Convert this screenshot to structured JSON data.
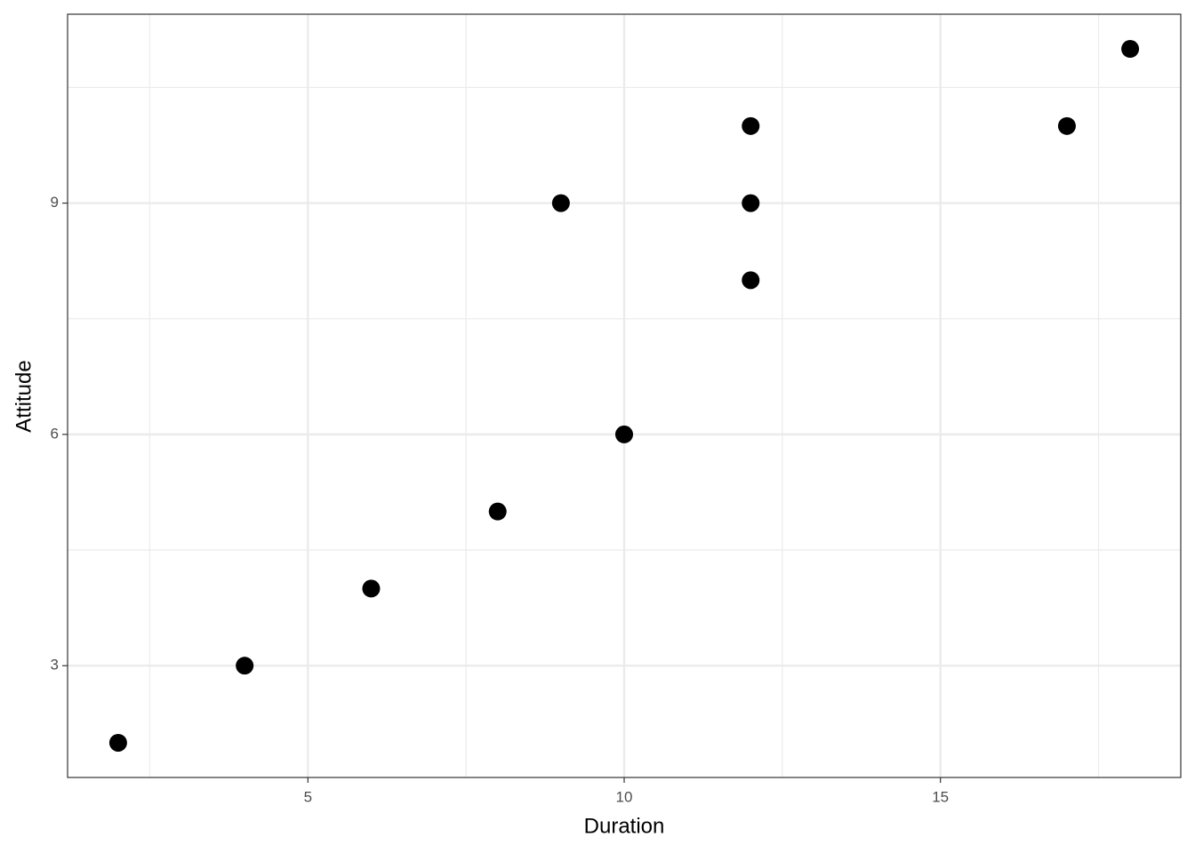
{
  "chart_data": {
    "type": "scatter",
    "x_label": "Duration",
    "y_label": "Attitude",
    "x": [
      2,
      4,
      6,
      8,
      9,
      10,
      12,
      12,
      12,
      17,
      18
    ],
    "values": [
      2,
      3,
      4,
      5,
      9,
      6,
      10,
      9,
      8,
      10,
      11
    ],
    "color": "#000000",
    "xlim": [
      1.2,
      18.8
    ],
    "ylim": [
      1.55,
      11.45
    ],
    "xticks": [
      5,
      10,
      15
    ],
    "yticks": [
      3,
      6,
      9
    ],
    "xminorticks": [
      2.5,
      7.5,
      12.5,
      17.5
    ],
    "yminorticks": [
      4.5,
      7.5,
      10.5
    ],
    "grid": true
  }
}
